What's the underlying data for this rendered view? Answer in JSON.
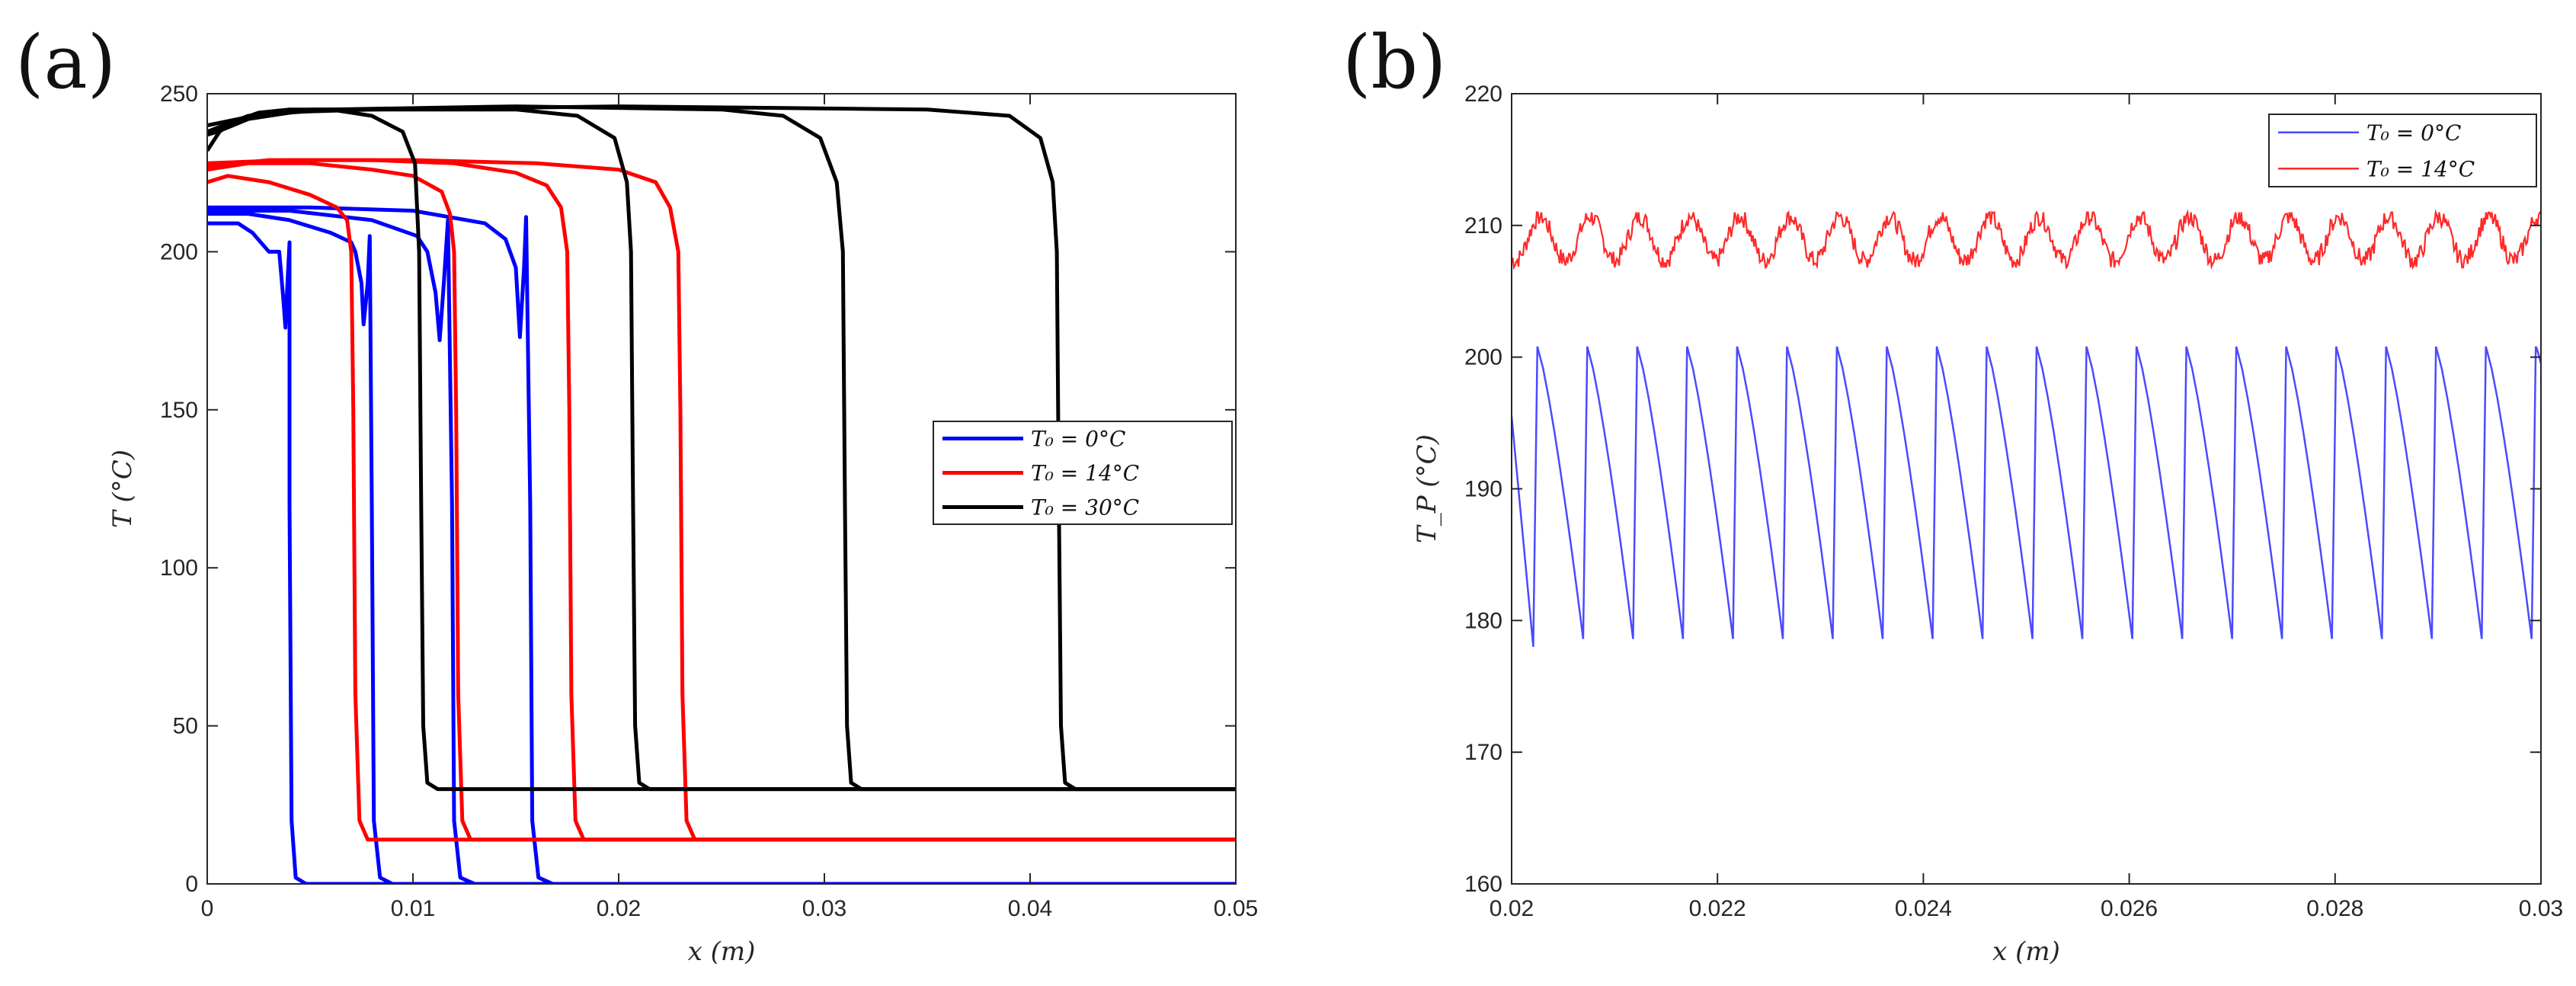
{
  "chart_data": [
    {
      "panel": "(a)",
      "type": "line",
      "xlabel": "x (m)",
      "ylabel": "T (°C)",
      "xlim": [
        0,
        0.05
      ],
      "ylim": [
        0,
        250
      ],
      "xticks": [
        0,
        0.01,
        0.02,
        0.03,
        0.04,
        0.05
      ],
      "xtick_labels": [
        "0",
        "0.01",
        "0.02",
        "0.03",
        "0.04",
        "0.05"
      ],
      "yticks": [
        0,
        50,
        100,
        150,
        200,
        250
      ],
      "ytick_labels": [
        "0",
        "50",
        "100",
        "150",
        "200",
        "250"
      ],
      "legend_position": "middle-right",
      "series": [
        {
          "name": "T₀ = 0°C",
          "color": "#0000ff",
          "lines": [
            [
              [
                0,
                209
              ],
              [
                0.0015,
                209
              ],
              [
                0.0022,
                206
              ],
              [
                0.003,
                200
              ],
              [
                0.0035,
                200
              ],
              [
                0.0037,
                185
              ],
              [
                0.0038,
                176
              ],
              [
                0.0039,
                190
              ],
              [
                0.004,
                203
              ],
              [
                0.004,
                120
              ],
              [
                0.0041,
                20
              ],
              [
                0.0043,
                2
              ],
              [
                0.0048,
                0
              ],
              [
                0.05,
                0
              ]
            ],
            [
              [
                0,
                212
              ],
              [
                0.002,
                212
              ],
              [
                0.004,
                210
              ],
              [
                0.006,
                206
              ],
              [
                0.007,
                203
              ],
              [
                0.0072,
                200
              ],
              [
                0.0075,
                190
              ],
              [
                0.0076,
                177
              ],
              [
                0.0078,
                190
              ],
              [
                0.0079,
                205
              ],
              [
                0.008,
                120
              ],
              [
                0.0081,
                20
              ],
              [
                0.0084,
                2
              ],
              [
                0.009,
                0
              ],
              [
                0.05,
                0
              ]
            ],
            [
              [
                0,
                213
              ],
              [
                0.004,
                213
              ],
              [
                0.008,
                210
              ],
              [
                0.0102,
                205
              ],
              [
                0.0107,
                200
              ],
              [
                0.0111,
                187
              ],
              [
                0.0113,
                172
              ],
              [
                0.0115,
                190
              ],
              [
                0.0117,
                210
              ],
              [
                0.0119,
                120
              ],
              [
                0.012,
                20
              ],
              [
                0.0123,
                2
              ],
              [
                0.013,
                0
              ],
              [
                0.05,
                0
              ]
            ],
            [
              [
                0,
                214
              ],
              [
                0.005,
                214
              ],
              [
                0.01,
                213
              ],
              [
                0.0135,
                209
              ],
              [
                0.0145,
                204
              ],
              [
                0.015,
                195
              ],
              [
                0.0152,
                173
              ],
              [
                0.0154,
                195
              ],
              [
                0.0155,
                211
              ],
              [
                0.0157,
                120
              ],
              [
                0.0158,
                20
              ],
              [
                0.0161,
                2
              ],
              [
                0.0168,
                0
              ],
              [
                0.05,
                0
              ]
            ]
          ]
        },
        {
          "name": "T₀ = 14°C",
          "color": "#ff0000",
          "lines": [
            [
              [
                0,
                222
              ],
              [
                0.001,
                224
              ],
              [
                0.003,
                222
              ],
              [
                0.005,
                218
              ],
              [
                0.0063,
                214
              ],
              [
                0.0068,
                210
              ],
              [
                0.007,
                200
              ],
              [
                0.0071,
                150
              ],
              [
                0.0072,
                60
              ],
              [
                0.0074,
                20
              ],
              [
                0.0078,
                14
              ],
              [
                0.05,
                14
              ]
            ],
            [
              [
                0,
                226
              ],
              [
                0.002,
                228
              ],
              [
                0.005,
                228
              ],
              [
                0.008,
                226
              ],
              [
                0.01,
                224
              ],
              [
                0.0114,
                219
              ],
              [
                0.0118,
                212
              ],
              [
                0.012,
                200
              ],
              [
                0.0121,
                150
              ],
              [
                0.0122,
                60
              ],
              [
                0.0124,
                20
              ],
              [
                0.0128,
                14
              ],
              [
                0.05,
                14
              ]
            ],
            [
              [
                0,
                227
              ],
              [
                0.003,
                229
              ],
              [
                0.008,
                229
              ],
              [
                0.012,
                228
              ],
              [
                0.015,
                225
              ],
              [
                0.0165,
                221
              ],
              [
                0.0172,
                214
              ],
              [
                0.0175,
                200
              ],
              [
                0.0176,
                150
              ],
              [
                0.0177,
                60
              ],
              [
                0.0179,
                20
              ],
              [
                0.0183,
                14
              ],
              [
                0.05,
                14
              ]
            ],
            [
              [
                0,
                228
              ],
              [
                0.004,
                229
              ],
              [
                0.01,
                229
              ],
              [
                0.016,
                228
              ],
              [
                0.02,
                226
              ],
              [
                0.0218,
                222
              ],
              [
                0.0225,
                214
              ],
              [
                0.0229,
                200
              ],
              [
                0.023,
                150
              ],
              [
                0.0231,
                60
              ],
              [
                0.0233,
                20
              ],
              [
                0.0237,
                14
              ],
              [
                0.05,
                14
              ]
            ]
          ]
        },
        {
          "name": "T₀ = 30°C",
          "color": "#000000",
          "lines": [
            [
              [
                0,
                232
              ],
              [
                0.0003,
                235
              ],
              [
                0.0006,
                238
              ],
              [
                0.0012,
                241
              ],
              [
                0.0025,
                244
              ],
              [
                0.004,
                245
              ],
              [
                0.006,
                245
              ],
              [
                0.008,
                243
              ],
              [
                0.0095,
                238
              ],
              [
                0.0101,
                228
              ],
              [
                0.0103,
                200
              ],
              [
                0.0104,
                120
              ],
              [
                0.0105,
                50
              ],
              [
                0.0107,
                32
              ],
              [
                0.0112,
                30
              ],
              [
                0.05,
                30
              ]
            ],
            [
              [
                0,
                237
              ],
              [
                0.0005,
                238
              ],
              [
                0.002,
                242
              ],
              [
                0.005,
                245
              ],
              [
                0.01,
                245
              ],
              [
                0.015,
                245
              ],
              [
                0.018,
                243
              ],
              [
                0.0198,
                236
              ],
              [
                0.0204,
                222
              ],
              [
                0.0206,
                200
              ],
              [
                0.0207,
                120
              ],
              [
                0.0208,
                50
              ],
              [
                0.021,
                32
              ],
              [
                0.0215,
                30
              ],
              [
                0.05,
                30
              ]
            ],
            [
              [
                0,
                238
              ],
              [
                0.002,
                243
              ],
              [
                0.006,
                245
              ],
              [
                0.015,
                246
              ],
              [
                0.025,
                245
              ],
              [
                0.028,
                243
              ],
              [
                0.0298,
                236
              ],
              [
                0.0306,
                222
              ],
              [
                0.0309,
                200
              ],
              [
                0.031,
                120
              ],
              [
                0.0311,
                50
              ],
              [
                0.0313,
                32
              ],
              [
                0.0318,
                30
              ],
              [
                0.05,
                30
              ]
            ],
            [
              [
                0,
                240
              ],
              [
                0.003,
                244
              ],
              [
                0.008,
                245
              ],
              [
                0.02,
                246
              ],
              [
                0.035,
                245
              ],
              [
                0.039,
                243
              ],
              [
                0.0405,
                236
              ],
              [
                0.0411,
                222
              ],
              [
                0.0413,
                200
              ],
              [
                0.0414,
                120
              ],
              [
                0.0415,
                50
              ],
              [
                0.0417,
                32
              ],
              [
                0.0422,
                30
              ],
              [
                0.05,
                30
              ]
            ]
          ]
        }
      ]
    },
    {
      "panel": "(b)",
      "type": "line",
      "xlabel": "x (m)",
      "ylabel": "T_P (°C)",
      "xlim": [
        0.02,
        0.03
      ],
      "ylim": [
        160,
        220
      ],
      "xticks": [
        0.02,
        0.022,
        0.024,
        0.026,
        0.028,
        0.03
      ],
      "xtick_labels": [
        "0.02",
        "0.022",
        "0.024",
        "0.026",
        "0.028",
        "0.03"
      ],
      "yticks": [
        160,
        170,
        180,
        190,
        200,
        210,
        220
      ],
      "ytick_labels": [
        "160",
        "170",
        "180",
        "190",
        "200",
        "210",
        "220"
      ],
      "legend_position": "top-right",
      "series": [
        {
          "name": "T₀ = 0°C",
          "color": "#4a4aff",
          "pattern": "sawtooth",
          "period": 0.000485,
          "first_peak_x": 0.02025,
          "peak": 200.8,
          "trough": 178.6,
          "start_y": 195.5,
          "end_y": 199
        },
        {
          "name": "T₀ = 14°C",
          "color": "#ff2a2a",
          "pattern": "noisy-oscillation",
          "period": 0.000485,
          "max": 211,
          "min": 206.8,
          "mean": 209
        }
      ]
    }
  ]
}
